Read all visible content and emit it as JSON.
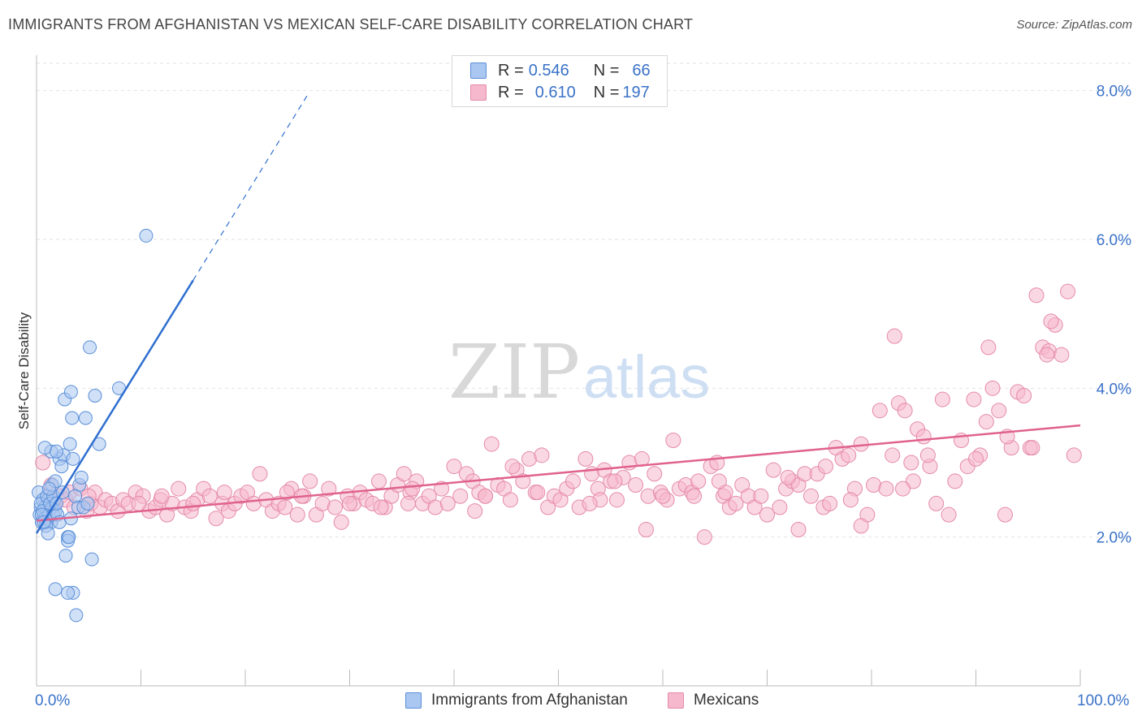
{
  "title": "IMMIGRANTS FROM AFGHANISTAN VS MEXICAN SELF-CARE DISABILITY CORRELATION CHART",
  "source": "Source: ZipAtlas.com",
  "watermark": {
    "part1": "ZIP",
    "part2": "atlas"
  },
  "legend_box": {
    "rows": [
      {
        "r_label": "R = ",
        "r_value": "0.546",
        "n_label": "N = ",
        "n_value": "66"
      },
      {
        "r_label": "R = ",
        "r_value": "0.610",
        "n_label": "N = ",
        "n_value": "197"
      }
    ]
  },
  "colors": {
    "afghanistan_fill": "#a9c7f0",
    "afghanistan_stroke": "#5a8fd8",
    "afghanistan_line": "#2f6fd0",
    "mexicans_fill": "#f6b8cc",
    "mexicans_stroke": "#e58aa8",
    "mexicans_line": "#e0628e",
    "axis_text": "#3a72c8",
    "grid": "#e2e2e2"
  },
  "chart_data": {
    "type": "scatter",
    "title": "IMMIGRANTS FROM AFGHANISTAN VS MEXICAN SELF-CARE DISABILITY CORRELATION CHART",
    "xlabel": "",
    "ylabel": "Self-Care Disability",
    "xlim": [
      0,
      100
    ],
    "ylim": [
      0,
      8.4
    ],
    "x_tick_labels": [
      "0.0%",
      "100.0%"
    ],
    "y_ticks": [
      2.0,
      4.0,
      6.0,
      8.0
    ],
    "y_tick_labels": [
      "2.0%",
      "4.0%",
      "6.0%",
      "8.0%"
    ],
    "grid": true,
    "legend_position": "bottom",
    "series": [
      {
        "name": "Immigrants from Afghanistan",
        "r": 0.546,
        "n": 66,
        "trend": {
          "x0": 0.0,
          "y0": 2.05,
          "x1": 15.0,
          "y1": 5.45,
          "dashed_to_x": 26.0,
          "dashed_to_y": 7.95
        },
        "points": [
          [
            0.2,
            2.6
          ],
          [
            0.3,
            2.3
          ],
          [
            0.4,
            2.4
          ],
          [
            0.5,
            2.2
          ],
          [
            0.6,
            2.5
          ],
          [
            0.7,
            2.3
          ],
          [
            0.8,
            2.4
          ],
          [
            0.9,
            2.2
          ],
          [
            1.0,
            2.35
          ],
          [
            1.1,
            2.5
          ],
          [
            0.4,
            2.45
          ],
          [
            0.6,
            2.35
          ],
          [
            0.8,
            2.25
          ],
          [
            1.2,
            2.3
          ],
          [
            1.4,
            2.2
          ],
          [
            1.5,
            2.4
          ],
          [
            1.6,
            2.3
          ],
          [
            1.7,
            2.5
          ],
          [
            1.8,
            2.35
          ],
          [
            2.0,
            2.3
          ],
          [
            1.0,
            2.55
          ],
          [
            1.3,
            2.45
          ],
          [
            1.6,
            2.55
          ],
          [
            1.9,
            2.45
          ],
          [
            2.2,
            2.2
          ],
          [
            2.5,
            2.6
          ],
          [
            0.9,
            2.15
          ],
          [
            1.1,
            2.05
          ],
          [
            0.5,
            2.3
          ],
          [
            0.7,
            2.2
          ],
          [
            1.5,
            2.7
          ],
          [
            1.8,
            2.75
          ],
          [
            2.2,
            3.05
          ],
          [
            2.6,
            3.1
          ],
          [
            3.2,
            3.25
          ],
          [
            3.5,
            3.05
          ],
          [
            1.4,
            3.15
          ],
          [
            1.9,
            3.15
          ],
          [
            2.4,
            2.95
          ],
          [
            4.1,
            2.7
          ],
          [
            4.3,
            2.8
          ],
          [
            4.0,
            2.4
          ],
          [
            4.5,
            2.4
          ],
          [
            3.7,
            2.55
          ],
          [
            3.3,
            2.25
          ],
          [
            3.0,
            2.0
          ],
          [
            2.8,
            1.75
          ],
          [
            3.0,
            1.95
          ],
          [
            3.1,
            2.0
          ],
          [
            5.3,
            1.7
          ],
          [
            1.8,
            1.3
          ],
          [
            3.5,
            1.25
          ],
          [
            3.0,
            1.25
          ],
          [
            3.8,
            0.95
          ],
          [
            2.7,
            3.85
          ],
          [
            3.3,
            3.95
          ],
          [
            3.4,
            3.6
          ],
          [
            4.7,
            3.6
          ],
          [
            5.6,
            3.9
          ],
          [
            6.0,
            3.25
          ],
          [
            5.1,
            4.55
          ],
          [
            7.9,
            4.0
          ],
          [
            10.5,
            6.05
          ],
          [
            4.9,
            2.45
          ],
          [
            0.8,
            3.2
          ],
          [
            1.2,
            2.65
          ]
        ]
      },
      {
        "name": "Mexicans",
        "r": 0.61,
        "n": 197,
        "trend": {
          "x0": 0.0,
          "y0": 2.22,
          "x1": 100.0,
          "y1": 3.5
        },
        "points": [
          [
            0.6,
            3.0
          ],
          [
            1.2,
            2.5
          ],
          [
            1.4,
            2.7
          ],
          [
            1.8,
            2.45
          ],
          [
            2.3,
            2.55
          ],
          [
            2.8,
            2.5
          ],
          [
            3.2,
            2.6
          ],
          [
            3.6,
            2.4
          ],
          [
            4.2,
            2.65
          ],
          [
            4.8,
            2.35
          ],
          [
            5.2,
            2.45
          ],
          [
            5.6,
            2.6
          ],
          [
            6.1,
            2.4
          ],
          [
            6.6,
            2.5
          ],
          [
            7.2,
            2.45
          ],
          [
            7.8,
            2.35
          ],
          [
            8.3,
            2.5
          ],
          [
            8.8,
            2.45
          ],
          [
            9.5,
            2.6
          ],
          [
            10.2,
            2.55
          ],
          [
            10.8,
            2.35
          ],
          [
            11.4,
            2.4
          ],
          [
            11.9,
            2.5
          ],
          [
            12.5,
            2.3
          ],
          [
            13.0,
            2.45
          ],
          [
            13.6,
            2.65
          ],
          [
            14.2,
            2.4
          ],
          [
            14.8,
            2.35
          ],
          [
            15.4,
            2.5
          ],
          [
            16.0,
            2.65
          ],
          [
            16.6,
            2.55
          ],
          [
            17.2,
            2.25
          ],
          [
            17.8,
            2.45
          ],
          [
            18.4,
            2.35
          ],
          [
            19.0,
            2.45
          ],
          [
            19.6,
            2.55
          ],
          [
            20.2,
            2.6
          ],
          [
            20.8,
            2.45
          ],
          [
            21.4,
            2.85
          ],
          [
            22.0,
            2.5
          ],
          [
            22.6,
            2.35
          ],
          [
            23.2,
            2.45
          ],
          [
            23.8,
            2.4
          ],
          [
            24.4,
            2.65
          ],
          [
            25.0,
            2.3
          ],
          [
            25.6,
            2.55
          ],
          [
            26.2,
            2.75
          ],
          [
            26.8,
            2.3
          ],
          [
            27.4,
            2.45
          ],
          [
            28.0,
            2.65
          ],
          [
            28.6,
            2.4
          ],
          [
            29.2,
            2.2
          ],
          [
            29.8,
            2.55
          ],
          [
            30.4,
            2.45
          ],
          [
            31.0,
            2.6
          ],
          [
            31.6,
            2.5
          ],
          [
            32.2,
            2.45
          ],
          [
            32.8,
            2.75
          ],
          [
            33.4,
            2.4
          ],
          [
            34.0,
            2.55
          ],
          [
            34.6,
            2.7
          ],
          [
            35.2,
            2.85
          ],
          [
            35.8,
            2.6
          ],
          [
            36.4,
            2.75
          ],
          [
            37.0,
            2.45
          ],
          [
            37.6,
            2.55
          ],
          [
            38.2,
            2.4
          ],
          [
            38.8,
            2.65
          ],
          [
            39.4,
            2.45
          ],
          [
            40.0,
            2.95
          ],
          [
            40.6,
            2.55
          ],
          [
            41.2,
            2.85
          ],
          [
            41.8,
            2.75
          ],
          [
            42.4,
            2.6
          ],
          [
            43.0,
            2.55
          ],
          [
            43.6,
            3.25
          ],
          [
            44.2,
            2.7
          ],
          [
            44.8,
            2.65
          ],
          [
            45.4,
            2.5
          ],
          [
            46.0,
            2.9
          ],
          [
            46.6,
            2.75
          ],
          [
            47.2,
            3.05
          ],
          [
            47.8,
            2.6
          ],
          [
            48.4,
            3.1
          ],
          [
            49.0,
            2.4
          ],
          [
            49.6,
            2.55
          ],
          [
            50.2,
            2.5
          ],
          [
            50.8,
            2.65
          ],
          [
            51.4,
            2.75
          ],
          [
            52.0,
            2.4
          ],
          [
            52.6,
            3.05
          ],
          [
            53.2,
            2.85
          ],
          [
            53.8,
            2.65
          ],
          [
            54.4,
            2.9
          ],
          [
            55.0,
            2.75
          ],
          [
            55.6,
            2.5
          ],
          [
            56.2,
            2.8
          ],
          [
            56.8,
            3.0
          ],
          [
            57.4,
            2.7
          ],
          [
            58.0,
            3.05
          ],
          [
            58.6,
            2.55
          ],
          [
            59.2,
            2.85
          ],
          [
            59.8,
            2.6
          ],
          [
            60.4,
            2.5
          ],
          [
            61.0,
            3.3
          ],
          [
            61.6,
            2.65
          ],
          [
            62.2,
            2.7
          ],
          [
            62.8,
            2.6
          ],
          [
            63.4,
            2.75
          ],
          [
            64.0,
            2.0
          ],
          [
            64.6,
            2.95
          ],
          [
            65.2,
            3.0
          ],
          [
            65.8,
            2.55
          ],
          [
            66.4,
            2.4
          ],
          [
            67.0,
            2.45
          ],
          [
            67.6,
            2.7
          ],
          [
            68.2,
            2.55
          ],
          [
            68.8,
            2.4
          ],
          [
            69.4,
            2.55
          ],
          [
            70.0,
            2.3
          ],
          [
            70.6,
            2.9
          ],
          [
            71.2,
            2.4
          ],
          [
            71.8,
            2.65
          ],
          [
            72.4,
            2.75
          ],
          [
            73.0,
            2.7
          ],
          [
            73.6,
            2.85
          ],
          [
            74.2,
            2.55
          ],
          [
            74.8,
            2.85
          ],
          [
            75.4,
            2.4
          ],
          [
            76.0,
            2.45
          ],
          [
            76.6,
            3.2
          ],
          [
            77.2,
            3.05
          ],
          [
            77.8,
            3.1
          ],
          [
            78.4,
            2.65
          ],
          [
            79.0,
            3.25
          ],
          [
            79.6,
            2.3
          ],
          [
            80.2,
            2.7
          ],
          [
            80.8,
            3.7
          ],
          [
            81.4,
            2.65
          ],
          [
            82.0,
            3.1
          ],
          [
            82.6,
            3.8
          ],
          [
            83.2,
            3.7
          ],
          [
            83.8,
            3.0
          ],
          [
            84.4,
            3.45
          ],
          [
            85.0,
            3.35
          ],
          [
            85.6,
            2.95
          ],
          [
            86.2,
            2.45
          ],
          [
            86.8,
            3.85
          ],
          [
            87.4,
            2.3
          ],
          [
            88.0,
            2.75
          ],
          [
            88.6,
            3.3
          ],
          [
            89.2,
            2.95
          ],
          [
            89.8,
            3.85
          ],
          [
            90.4,
            3.1
          ],
          [
            91.0,
            3.55
          ],
          [
            91.6,
            4.0
          ],
          [
            92.2,
            3.7
          ],
          [
            92.8,
            2.3
          ],
          [
            93.4,
            3.2
          ],
          [
            94.0,
            3.95
          ],
          [
            94.6,
            3.9
          ],
          [
            95.2,
            3.2
          ],
          [
            95.8,
            5.25
          ],
          [
            96.4,
            4.55
          ],
          [
            97.0,
            4.5
          ],
          [
            97.6,
            4.85
          ],
          [
            98.2,
            4.45
          ],
          [
            98.8,
            5.3
          ],
          [
            99.4,
            3.1
          ],
          [
            97.2,
            4.9
          ],
          [
            96.8,
            4.45
          ],
          [
            91.2,
            4.55
          ],
          [
            82.2,
            4.7
          ],
          [
            9.8,
            2.45
          ],
          [
            12.0,
            2.55
          ],
          [
            18.0,
            2.6
          ],
          [
            24.0,
            2.6
          ],
          [
            30.0,
            2.45
          ],
          [
            36.0,
            2.65
          ],
          [
            42.0,
            2.35
          ],
          [
            48.0,
            2.6
          ],
          [
            54.0,
            2.5
          ],
          [
            60.0,
            2.55
          ],
          [
            66.0,
            2.6
          ],
          [
            72.0,
            2.8
          ],
          [
            78.0,
            2.5
          ],
          [
            84.0,
            2.75
          ],
          [
            90.0,
            3.05
          ],
          [
            5.0,
            2.55
          ],
          [
            15.0,
            2.45
          ],
          [
            25.4,
            2.55
          ],
          [
            35.6,
            2.45
          ],
          [
            45.6,
            2.95
          ],
          [
            55.4,
            2.75
          ],
          [
            65.4,
            2.75
          ],
          [
            75.6,
            2.95
          ],
          [
            85.4,
            3.1
          ],
          [
            95.4,
            3.2
          ],
          [
            33.0,
            2.4
          ],
          [
            43.0,
            2.55
          ],
          [
            53.0,
            2.45
          ],
          [
            63.0,
            2.55
          ],
          [
            73.0,
            2.1
          ],
          [
            83.0,
            2.65
          ],
          [
            93.0,
            3.35
          ],
          [
            58.4,
            2.1
          ],
          [
            79.0,
            2.15
          ]
        ]
      }
    ]
  },
  "bottom_legend": [
    {
      "label": "Immigrants from Afghanistan"
    },
    {
      "label": "Mexicans"
    }
  ],
  "x_axis": {
    "left_label": "0.0%",
    "right_label": "100.0%"
  }
}
